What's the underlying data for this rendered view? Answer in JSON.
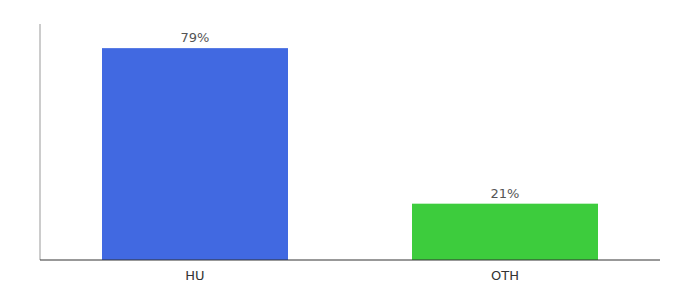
{
  "chart_data": {
    "type": "bar",
    "categories": [
      "HU",
      "OTH"
    ],
    "values": [
      79,
      21
    ],
    "value_labels": [
      "79%",
      "21%"
    ],
    "colors": [
      "#4169e1",
      "#3dcc3d"
    ],
    "ylim": [
      0,
      88
    ],
    "data_labels": true,
    "tick_labels": "x",
    "grid": false
  }
}
